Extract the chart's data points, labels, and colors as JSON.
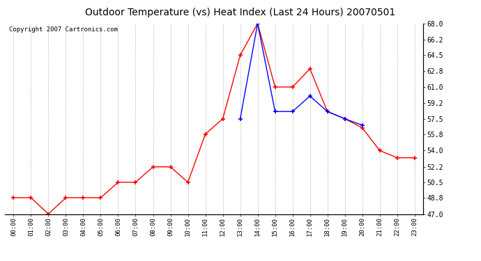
{
  "title": "Outdoor Temperature (vs) Heat Index (Last 24 Hours) 20070501",
  "copyright": "Copyright 2007 Cartronics.com",
  "hours": [
    "00:00",
    "01:00",
    "02:00",
    "03:00",
    "04:00",
    "05:00",
    "06:00",
    "07:00",
    "08:00",
    "09:00",
    "10:00",
    "11:00",
    "12:00",
    "13:00",
    "14:00",
    "15:00",
    "16:00",
    "17:00",
    "18:00",
    "19:00",
    "20:00",
    "21:00",
    "22:00",
    "23:00"
  ],
  "temp": [
    48.8,
    48.8,
    47.0,
    48.8,
    48.8,
    48.8,
    50.5,
    50.5,
    52.2,
    52.2,
    50.5,
    55.8,
    57.5,
    64.5,
    68.0,
    61.0,
    61.0,
    63.0,
    58.3,
    57.5,
    56.5,
    54.0,
    53.2,
    53.2
  ],
  "heat_index": [
    null,
    null,
    null,
    null,
    null,
    null,
    null,
    null,
    null,
    null,
    null,
    null,
    null,
    57.5,
    68.0,
    58.3,
    58.3,
    60.0,
    58.3,
    57.5,
    56.8,
    null,
    null,
    null
  ],
  "temp_color": "#ff0000",
  "heat_color": "#0000ff",
  "bg_color": "#ffffff",
  "grid_color": "#bbbbbb",
  "ylim_min": 47.0,
  "ylim_max": 68.0,
  "yticks": [
    47.0,
    48.8,
    50.5,
    52.2,
    54.0,
    55.8,
    57.5,
    59.2,
    61.0,
    62.8,
    64.5,
    66.2,
    68.0
  ],
  "title_fontsize": 10,
  "copyright_fontsize": 6.5,
  "marker": "+",
  "markersize": 5,
  "linewidth": 1.0
}
